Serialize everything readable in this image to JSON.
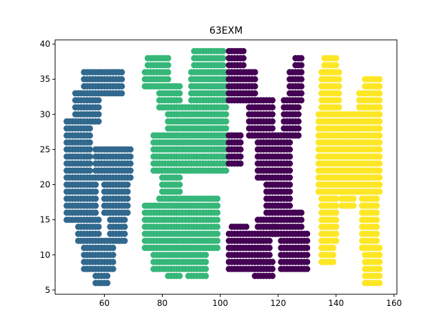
{
  "chart_data": {
    "type": "scatter",
    "title": "63EXM",
    "xlabel": "",
    "ylabel": "",
    "xlim": [
      43,
      161
    ],
    "ylim": [
      4.4,
      40.6
    ],
    "xticks": [
      60,
      80,
      100,
      120,
      140,
      160
    ],
    "yticks": [
      5,
      10,
      15,
      20,
      25,
      30,
      35,
      40
    ],
    "grid": false,
    "legend": "none",
    "series": [
      {
        "glyph": "6",
        "color": "#31688e",
        "rects": [
          [
            53,
            66,
            33,
            36
          ],
          [
            50,
            58,
            29,
            33
          ],
          [
            47,
            55,
            21,
            29
          ],
          [
            47,
            57,
            15,
            21
          ],
          [
            51,
            58,
            12,
            15
          ],
          [
            53,
            63,
            8,
            12
          ],
          [
            57,
            61,
            6,
            8
          ],
          [
            57,
            69,
            21,
            25
          ],
          [
            60,
            68,
            16,
            21
          ],
          [
            62,
            67,
            12,
            16
          ]
        ]
      },
      {
        "glyph": "3",
        "color": "#35b779",
        "rects": [
          [
            75,
            82,
            36,
            38
          ],
          [
            74,
            82,
            34,
            36
          ],
          [
            79,
            86,
            31,
            34
          ],
          [
            82,
            90,
            27,
            31
          ],
          [
            77,
            87,
            22,
            27
          ],
          [
            80,
            86,
            18,
            22
          ],
          [
            79,
            99,
            15,
            18
          ],
          [
            75,
            99,
            11,
            14
          ],
          [
            77,
            95,
            8,
            11
          ],
          [
            82,
            86,
            7,
            8
          ],
          [
            89,
            95,
            7,
            8
          ],
          [
            74,
            78,
            11,
            17
          ],
          [
            86,
            94,
            13,
            16
          ],
          [
            87,
            102,
            22,
            27
          ],
          [
            90,
            102,
            27,
            36
          ],
          [
            91,
            101,
            36,
            39
          ]
        ]
      },
      {
        "glyph": "E",
        "color": "#440154",
        "rects": [
          [
            103,
            108,
            36,
            39
          ],
          [
            103,
            112,
            32,
            36
          ],
          [
            103,
            107,
            23,
            27
          ],
          [
            103,
            117,
            8,
            13
          ],
          [
            104,
            109,
            13,
            14
          ],
          [
            113,
            119,
            13,
            15
          ]
        ]
      },
      {
        "glyph": "X",
        "color": "#440154",
        "rects": [
          [
            110,
            118,
            27,
            32
          ],
          [
            113,
            124,
            21,
            27
          ],
          [
            116,
            124,
            16,
            21
          ],
          [
            118,
            128,
            13,
            16
          ],
          [
            121,
            130,
            8,
            13
          ],
          [
            122,
            127,
            27,
            32
          ],
          [
            124,
            128,
            32,
            36
          ],
          [
            126,
            128,
            36,
            38
          ],
          [
            112,
            118,
            7,
            9
          ]
        ]
      },
      {
        "glyph": "M",
        "color": "#fde725",
        "rects": [
          [
            136,
            140,
            36,
            38
          ],
          [
            135,
            141,
            30,
            36
          ],
          [
            134,
            155,
            19,
            30
          ],
          [
            135,
            140,
            12,
            19
          ],
          [
            135,
            139,
            9,
            12
          ],
          [
            142,
            146,
            17,
            19
          ],
          [
            149,
            154,
            11,
            19
          ],
          [
            150,
            155,
            6,
            11
          ],
          [
            148,
            155,
            30,
            33
          ],
          [
            150,
            155,
            33,
            35
          ]
        ]
      }
    ]
  }
}
